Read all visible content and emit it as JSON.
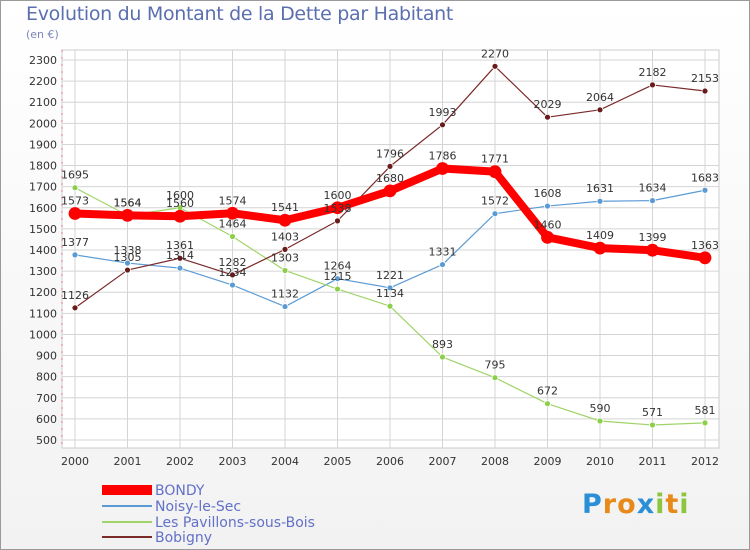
{
  "title": "Evolution du Montant de la Dette par Habitant",
  "subtitle": "(en €)",
  "logo": {
    "letters": [
      "P",
      "r",
      "o",
      "x",
      "i",
      "t",
      "i"
    ],
    "colors": [
      "#2a8fd6",
      "#e88a1a",
      "#e88a1a",
      "#2a8fd6",
      "#8cc63f",
      "#e88a1a",
      "#8cc63f"
    ]
  },
  "chart_data": {
    "type": "line",
    "x": [
      "2000",
      "2001",
      "2002",
      "2003",
      "2004",
      "2005",
      "2006",
      "2007",
      "2008",
      "2009",
      "2010",
      "2011",
      "2012"
    ],
    "ylim": [
      500,
      2300
    ],
    "yticks": [
      500,
      600,
      700,
      800,
      900,
      1000,
      1100,
      1200,
      1300,
      1400,
      1500,
      1600,
      1700,
      1800,
      1900,
      2000,
      2100,
      2200,
      2300
    ],
    "grid": true,
    "legend_position": "bottom-left",
    "series": [
      {
        "name": "BONDY",
        "color": "#ff0000",
        "values": [
          1573,
          1564,
          1560,
          1574,
          1541,
          1600,
          1680,
          1786,
          1771,
          1460,
          1409,
          1399,
          1363
        ]
      },
      {
        "name": "Noisy-le-Sec",
        "color": "#5b9bd5",
        "values": [
          1377,
          1338,
          1314,
          1234,
          1132,
          1264,
          1221,
          1331,
          1572,
          1608,
          1631,
          1634,
          1683
        ]
      },
      {
        "name": "Les Pavillons-sous-Bois",
        "color": "#a0d468",
        "values": [
          1695,
          1564,
          1600,
          1464,
          1303,
          1215,
          1134,
          893,
          795,
          672,
          590,
          571,
          581
        ]
      },
      {
        "name": "Bobigny",
        "color": "#7b2a2a",
        "values": [
          1126,
          1305,
          1361,
          1282,
          1403,
          1538,
          1796,
          1993,
          2270,
          2029,
          2064,
          2182,
          2153
        ]
      }
    ]
  }
}
